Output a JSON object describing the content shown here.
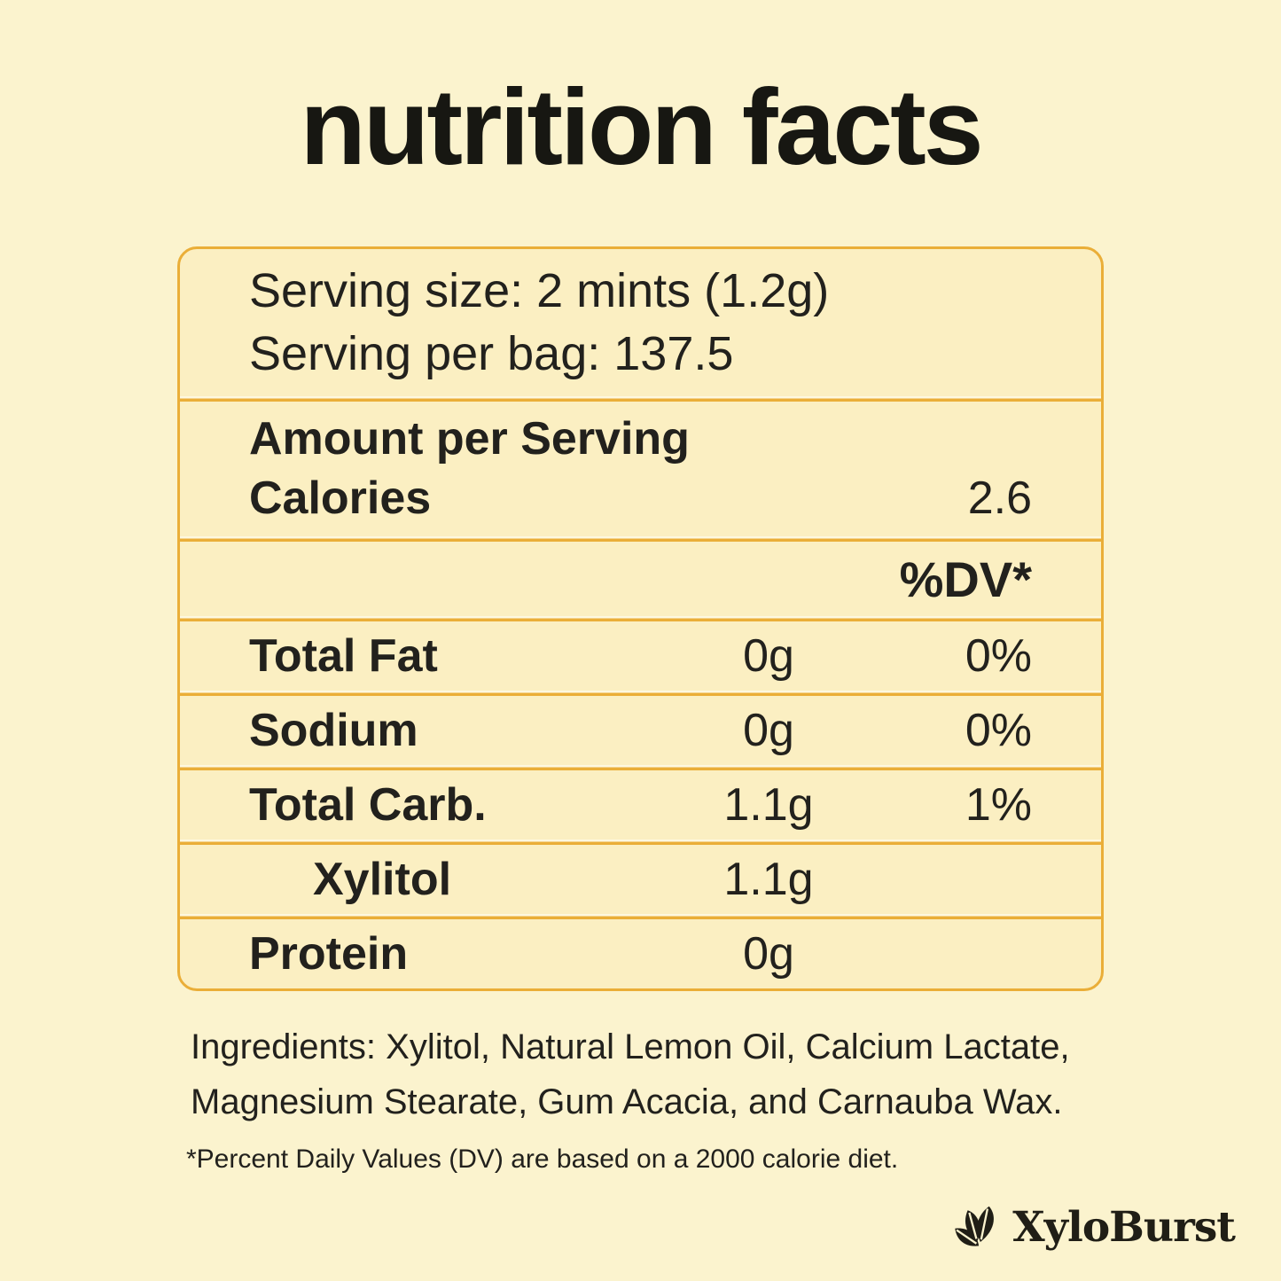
{
  "title": "nutrition facts",
  "panel": {
    "serving_line1": "Serving size: 2 mints (1.2g)",
    "serving_line2": "Serving per bag: 137.5",
    "amount_header": "Amount per Serving",
    "calories": {
      "label": "Calories",
      "value": "2.6"
    },
    "dv_header": "%DV*",
    "rows": [
      {
        "label": "Total Fat",
        "amount": "0g",
        "dv": "0%",
        "indent": false
      },
      {
        "label": "Sodium",
        "amount": "0g",
        "dv": "0%",
        "indent": false
      },
      {
        "label": "Total Carb.",
        "amount": "1.1g",
        "dv": "1%",
        "indent": false
      },
      {
        "label": "Xylitol",
        "amount": "1.1g",
        "dv": "",
        "indent": true
      },
      {
        "label": "Protein",
        "amount": "0g",
        "dv": "",
        "indent": false
      }
    ]
  },
  "ingredients_line1": "Ingredients: Xylitol, Natural Lemon Oil, Calcium Lactate,",
  "ingredients_line2": "Magnesium Stearate, Gum Acacia, and Carnauba Wax.",
  "footnote": "*Percent Daily Values (DV) are based on a 2000 calorie diet.",
  "brand": {
    "name": "XyloBurst",
    "icon": "leaf-icon"
  },
  "colors": {
    "background": "#FBF3CE",
    "panel_fill": "#FBEFC2",
    "gold": "#EAAE38",
    "text": "#22211D"
  }
}
